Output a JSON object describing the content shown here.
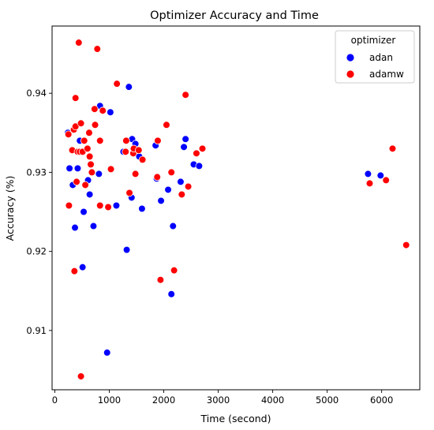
{
  "chart_data": {
    "type": "scatter",
    "title": "Optimizer Accuracy and Time",
    "xlabel": "Time (second)",
    "ylabel": "Accuracy (%)",
    "xlim": [
      -50,
      6700
    ],
    "ylim": [
      0.9025,
      0.9485
    ],
    "x_ticks": [
      0,
      1000,
      2000,
      3000,
      4000,
      5000,
      6000
    ],
    "y_ticks": [
      0.91,
      0.92,
      0.93,
      0.94
    ],
    "grid": false,
    "legend": {
      "title": "optimizer",
      "placement": "top-right"
    },
    "series": [
      {
        "name": "adan",
        "color": "#0000ff",
        "points": [
          [
            240,
            0.935
          ],
          [
            270,
            0.9305
          ],
          [
            330,
            0.9284
          ],
          [
            370,
            0.923
          ],
          [
            420,
            0.9305
          ],
          [
            460,
            0.934
          ],
          [
            510,
            0.918
          ],
          [
            530,
            0.925
          ],
          [
            610,
            0.929
          ],
          [
            640,
            0.9272
          ],
          [
            710,
            0.9232
          ],
          [
            810,
            0.9298
          ],
          [
            830,
            0.9384
          ],
          [
            960,
            0.9072
          ],
          [
            1020,
            0.9376
          ],
          [
            1130,
            0.9258
          ],
          [
            1260,
            0.9326
          ],
          [
            1320,
            0.9202
          ],
          [
            1360,
            0.9408
          ],
          [
            1410,
            0.9268
          ],
          [
            1420,
            0.9342
          ],
          [
            1480,
            0.9336
          ],
          [
            1550,
            0.932
          ],
          [
            1600,
            0.9254
          ],
          [
            1850,
            0.9334
          ],
          [
            1870,
            0.9292
          ],
          [
            1950,
            0.9264
          ],
          [
            2080,
            0.9278
          ],
          [
            2140,
            0.9146
          ],
          [
            2170,
            0.9232
          ],
          [
            2310,
            0.9288
          ],
          [
            2370,
            0.9332
          ],
          [
            2400,
            0.9342
          ],
          [
            2550,
            0.931
          ],
          [
            2650,
            0.9308
          ],
          [
            5750,
            0.9298
          ],
          [
            5980,
            0.9296
          ]
        ]
      },
      {
        "name": "adamw",
        "color": "#ff0000",
        "points": [
          [
            250,
            0.9348
          ],
          [
            260,
            0.9258
          ],
          [
            320,
            0.9328
          ],
          [
            350,
            0.9354
          ],
          [
            360,
            0.9175
          ],
          [
            380,
            0.9358
          ],
          [
            380,
            0.9394
          ],
          [
            400,
            0.9288
          ],
          [
            420,
            0.9326
          ],
          [
            440,
            0.9464
          ],
          [
            460,
            0.9326
          ],
          [
            480,
            0.9362
          ],
          [
            480,
            0.9042
          ],
          [
            510,
            0.9326
          ],
          [
            540,
            0.934
          ],
          [
            560,
            0.9284
          ],
          [
            600,
            0.933
          ],
          [
            630,
            0.935
          ],
          [
            640,
            0.932
          ],
          [
            660,
            0.931
          ],
          [
            680,
            0.93
          ],
          [
            730,
            0.938
          ],
          [
            740,
            0.936
          ],
          [
            780,
            0.9456
          ],
          [
            830,
            0.9258
          ],
          [
            830,
            0.934
          ],
          [
            880,
            0.9378
          ],
          [
            980,
            0.9256
          ],
          [
            1030,
            0.9304
          ],
          [
            1140,
            0.9412
          ],
          [
            1300,
            0.9326
          ],
          [
            1310,
            0.934
          ],
          [
            1370,
            0.9274
          ],
          [
            1440,
            0.9324
          ],
          [
            1450,
            0.933
          ],
          [
            1480,
            0.9298
          ],
          [
            1540,
            0.9328
          ],
          [
            1610,
            0.9316
          ],
          [
            1880,
            0.9294
          ],
          [
            1890,
            0.934
          ],
          [
            1940,
            0.9164
          ],
          [
            2050,
            0.936
          ],
          [
            2140,
            0.93
          ],
          [
            2190,
            0.9176
          ],
          [
            2330,
            0.9272
          ],
          [
            2400,
            0.9398
          ],
          [
            2450,
            0.9282
          ],
          [
            2600,
            0.9324
          ],
          [
            2710,
            0.933
          ],
          [
            5780,
            0.9286
          ],
          [
            6080,
            0.929
          ],
          [
            6200,
            0.933
          ],
          [
            6450,
            0.9208
          ]
        ]
      }
    ]
  }
}
